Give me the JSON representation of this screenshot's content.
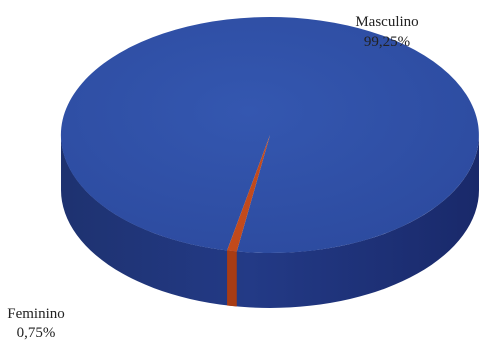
{
  "chart_data": {
    "type": "pie",
    "style": "3d",
    "title": "",
    "slices": [
      {
        "name": "Masculino",
        "value": 99.25,
        "label": "99,25%",
        "color": "#2f4ea3"
      },
      {
        "name": "Feminino",
        "value": 0.75,
        "label": "0,75%",
        "color": "#c24a1c"
      }
    ]
  }
}
